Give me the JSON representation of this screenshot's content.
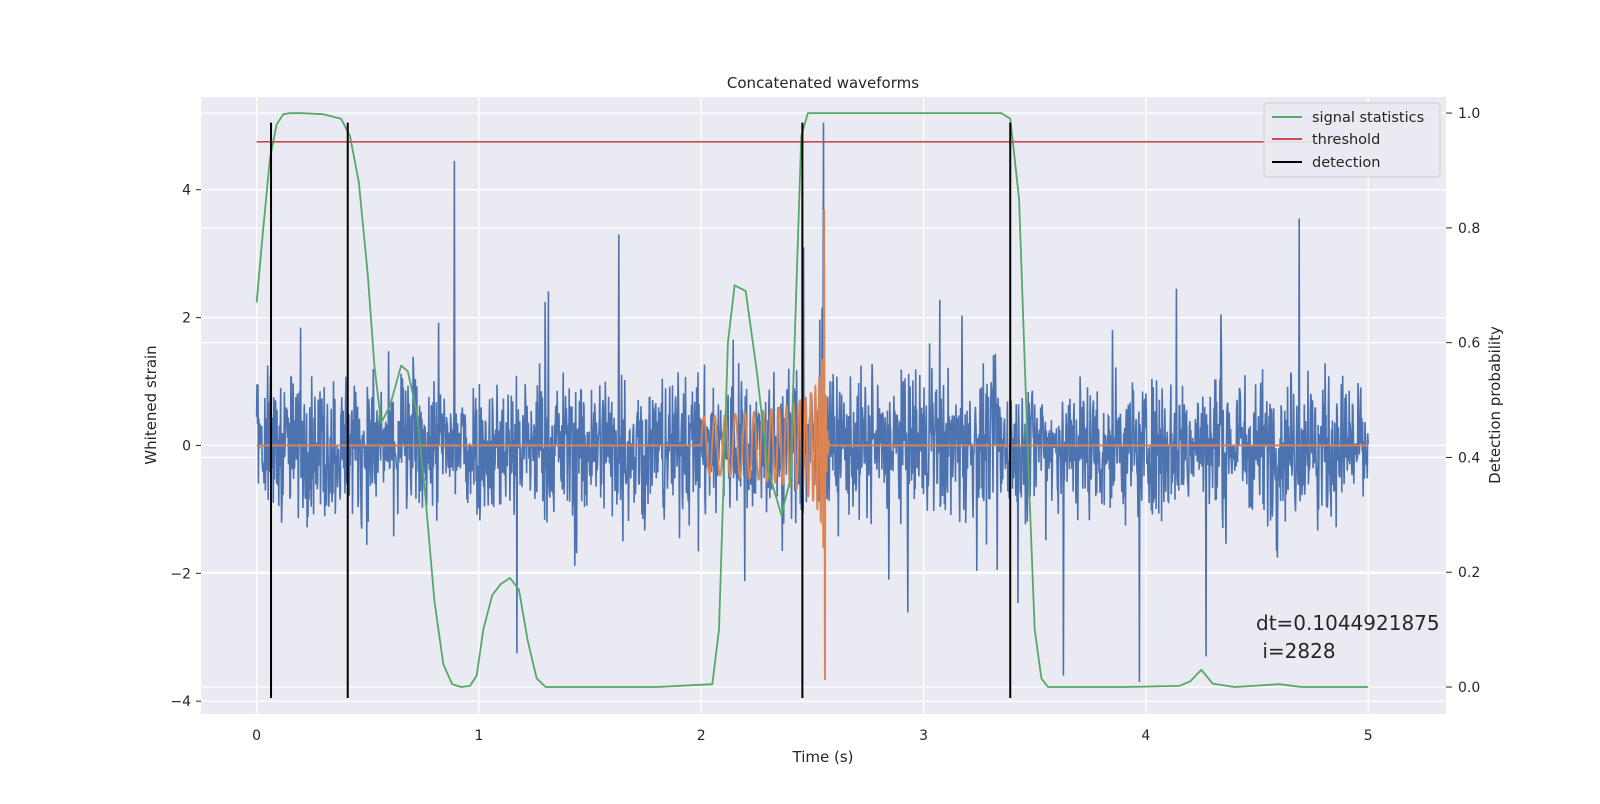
{
  "chart_data": {
    "type": "line",
    "title": "Concatenated waveforms",
    "xlabel": "Time (s)",
    "ylabel": "Whitened strain",
    "ylabel_right": "Detection probability",
    "xlim": [
      -0.25,
      5.35
    ],
    "ylim": [
      -4.2,
      5.45
    ],
    "ylim_right": [
      -0.047,
      1.028
    ],
    "x_ticks": [
      0,
      1,
      2,
      3,
      4,
      5
    ],
    "y_ticks": [
      -4,
      -2,
      0,
      2,
      4
    ],
    "y_ticks_right": [
      0.0,
      0.2,
      0.4,
      0.6,
      0.8,
      1.0
    ],
    "x_tick_labels": [
      "0",
      "1",
      "2",
      "3",
      "4",
      "5"
    ],
    "y_tick_labels": [
      "−4",
      "−2",
      "0",
      "2",
      "4"
    ],
    "y_right_tick_labels": [
      "0.0",
      "0.2",
      "0.4",
      "0.6",
      "0.8",
      "1.0"
    ],
    "grid": true,
    "legend_position": "top-right",
    "colors": {
      "background": "#eaeaf2",
      "strain": "#4c72b0",
      "template": "#dd8452",
      "signal_statistics": "#55a868",
      "threshold": "#c44e52",
      "detection": "#000000"
    },
    "series": [
      {
        "name": "signal statistics",
        "axis": "right",
        "x": [
          0.0,
          0.03,
          0.06,
          0.09,
          0.12,
          0.15,
          0.2,
          0.3,
          0.38,
          0.42,
          0.46,
          0.5,
          0.53,
          0.56,
          0.6,
          0.65,
          0.68,
          0.72,
          0.76,
          0.8,
          0.84,
          0.88,
          0.92,
          0.96,
          0.99,
          1.02,
          1.06,
          1.1,
          1.14,
          1.18,
          1.22,
          1.26,
          1.3,
          1.5,
          1.8,
          2.05,
          2.08,
          2.12,
          2.15,
          2.2,
          2.25,
          2.3,
          2.36,
          2.4,
          2.43,
          2.45,
          2.48,
          2.5,
          2.6,
          3.0,
          3.35,
          3.39,
          3.43,
          3.47,
          3.5,
          3.53,
          3.56,
          3.6,
          3.9,
          4.15,
          4.2,
          4.25,
          4.3,
          4.4,
          4.6,
          4.7,
          5.0
        ],
        "y": [
          0.67,
          0.8,
          0.92,
          0.98,
          0.998,
          1.0,
          1.0,
          0.998,
          0.99,
          0.96,
          0.88,
          0.72,
          0.56,
          0.46,
          0.49,
          0.56,
          0.55,
          0.48,
          0.33,
          0.15,
          0.04,
          0.005,
          0.0,
          0.002,
          0.02,
          0.1,
          0.16,
          0.18,
          0.19,
          0.17,
          0.08,
          0.015,
          0.0,
          0.0,
          0.0,
          0.005,
          0.1,
          0.6,
          0.7,
          0.69,
          0.55,
          0.38,
          0.3,
          0.36,
          0.72,
          0.96,
          1.0,
          1.0,
          1.0,
          1.0,
          1.0,
          0.99,
          0.85,
          0.4,
          0.1,
          0.015,
          0.0,
          0.0,
          0.0,
          0.002,
          0.01,
          0.03,
          0.006,
          0.0,
          0.005,
          0.0,
          0.0
        ]
      },
      {
        "name": "threshold",
        "axis": "right",
        "x": [
          0.0,
          5.0
        ],
        "y": [
          0.95,
          0.95
        ]
      },
      {
        "name": "detection",
        "axis": "left",
        "segments_x": [
          0.065,
          0.41,
          2.455,
          3.39
        ],
        "y_range": [
          -3.95,
          5.05
        ]
      },
      {
        "name": "",
        "description": "whitened strain (noisy)",
        "axis": "left",
        "x_range": [
          0.0,
          5.0
        ],
        "envelope": 1.6,
        "spikes": [
          [
            0.89,
            4.45
          ],
          [
            1.17,
            -3.25
          ],
          [
            2.55,
            5.05
          ],
          [
            4.69,
            3.55
          ],
          [
            1.63,
            3.3
          ],
          [
            3.97,
            -3.7
          ],
          [
            3.63,
            -3.6
          ],
          [
            2.46,
            3.1
          ],
          [
            4.27,
            -3.3
          ]
        ]
      },
      {
        "name": "",
        "description": "template chirp",
        "axis": "left",
        "start": 2.0,
        "merger": 2.555,
        "peak_amplitude": 3.7
      }
    ],
    "annotation": {
      "line1": "dt=0.1044921875",
      "line2": " i=2828"
    }
  }
}
